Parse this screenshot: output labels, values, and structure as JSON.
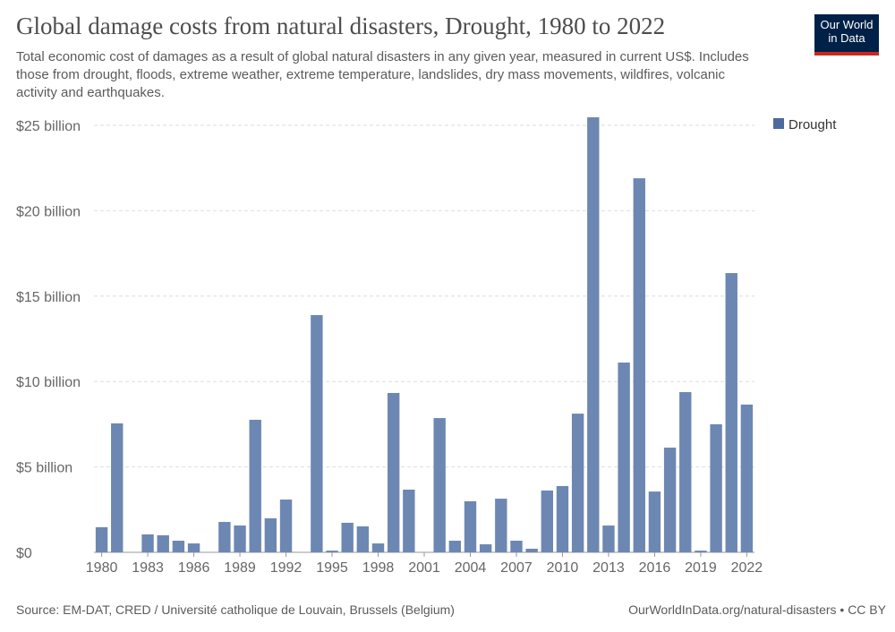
{
  "header": {
    "title": "Global damage costs from natural disasters, Drought, 1980 to 2022",
    "subtitle": "Total economic cost of damages as a result of global natural disasters in any given year, measured in current US$. Includes those from drought, floods, extreme weather, extreme temperature, landslides, dry mass movements, wildfires, volcanic activity and earthquakes.",
    "logo_text": "Our World in Data"
  },
  "footer": {
    "source": "Source: EM-DAT, CRED / Université catholique de Louvain, Brussels (Belgium)",
    "credit": "OurWorldInData.org/natural-disasters • CC BY"
  },
  "colors": {
    "bar": "#6d87b3",
    "legend": "#4c6a9c",
    "logo_bg": "#002147",
    "logo_accent": "#ce261e"
  },
  "chart_data": {
    "type": "bar",
    "title": "Global damage costs from natural disasters, Drought, 1980 to 2022",
    "xlabel": "",
    "ylabel": "",
    "unit": "billion US$",
    "ylim": [
      0,
      25
    ],
    "yticks": [
      0,
      5,
      10,
      15,
      20,
      25
    ],
    "ytick_labels": [
      "$0",
      "$5 billion",
      "$10 billion",
      "$15 billion",
      "$20 billion",
      "$25 billion"
    ],
    "xtick_labels": [
      "1980",
      "1983",
      "1986",
      "1989",
      "1992",
      "1995",
      "1998",
      "2001",
      "2004",
      "2007",
      "2010",
      "2013",
      "2016",
      "2019",
      "2022"
    ],
    "grid": true,
    "legend": {
      "position": "top-right",
      "entries": [
        "Drought"
      ]
    },
    "categories": [
      1980,
      1981,
      1982,
      1983,
      1984,
      1985,
      1986,
      1987,
      1988,
      1989,
      1990,
      1991,
      1992,
      1993,
      1994,
      1995,
      1996,
      1997,
      1998,
      1999,
      2000,
      2001,
      2002,
      2003,
      2004,
      2005,
      2006,
      2007,
      2008,
      2009,
      2010,
      2011,
      2012,
      2013,
      2014,
      2015,
      2016,
      2017,
      2018,
      2019,
      2020,
      2021,
      2022
    ],
    "series": [
      {
        "name": "Drought",
        "values": [
          1.47,
          7.55,
          0,
          1.05,
          1.0,
          0.68,
          0.52,
          0,
          1.78,
          1.57,
          7.76,
          1.99,
          3.09,
          0,
          13.89,
          0.1,
          1.73,
          1.52,
          0.52,
          9.33,
          3.67,
          0,
          7.86,
          0.68,
          2.99,
          0.47,
          3.14,
          0.68,
          0.21,
          3.62,
          3.88,
          8.12,
          25.47,
          1.57,
          11.11,
          21.9,
          3.56,
          6.13,
          9.38,
          0.1,
          7.5,
          16.35,
          8.65
        ]
      }
    ]
  }
}
